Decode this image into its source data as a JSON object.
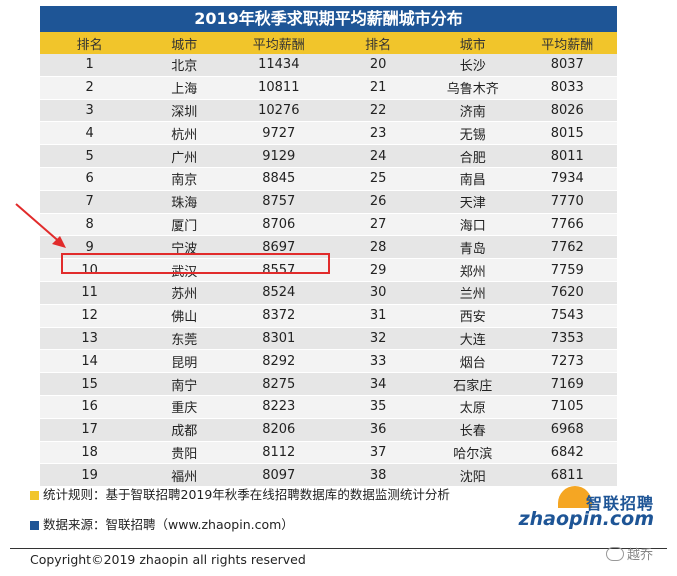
{
  "title": "2019年秋季求职期平均薪酬城市分布",
  "headers": {
    "rank": "排名",
    "city": "城市",
    "salary": "平均薪酬"
  },
  "rows": [
    {
      "l": {
        "rank": "1",
        "city": "北京",
        "salary": "11434"
      },
      "r": {
        "rank": "20",
        "city": "长沙",
        "salary": "8037"
      }
    },
    {
      "l": {
        "rank": "2",
        "city": "上海",
        "salary": "10811"
      },
      "r": {
        "rank": "21",
        "city": "乌鲁木齐",
        "salary": "8033"
      }
    },
    {
      "l": {
        "rank": "3",
        "city": "深圳",
        "salary": "10276"
      },
      "r": {
        "rank": "22",
        "city": "济南",
        "salary": "8026"
      }
    },
    {
      "l": {
        "rank": "4",
        "city": "杭州",
        "salary": "9727"
      },
      "r": {
        "rank": "23",
        "city": "无锡",
        "salary": "8015"
      }
    },
    {
      "l": {
        "rank": "5",
        "city": "广州",
        "salary": "9129"
      },
      "r": {
        "rank": "24",
        "city": "合肥",
        "salary": "8011"
      }
    },
    {
      "l": {
        "rank": "6",
        "city": "南京",
        "salary": "8845"
      },
      "r": {
        "rank": "25",
        "city": "南昌",
        "salary": "7934"
      }
    },
    {
      "l": {
        "rank": "7",
        "city": "珠海",
        "salary": "8757"
      },
      "r": {
        "rank": "26",
        "city": "天津",
        "salary": "7770"
      }
    },
    {
      "l": {
        "rank": "8",
        "city": "厦门",
        "salary": "8706"
      },
      "r": {
        "rank": "27",
        "city": "海口",
        "salary": "7766"
      }
    },
    {
      "l": {
        "rank": "9",
        "city": "宁波",
        "salary": "8697"
      },
      "r": {
        "rank": "28",
        "city": "青岛",
        "salary": "7762"
      }
    },
    {
      "l": {
        "rank": "10",
        "city": "武汉",
        "salary": "8557"
      },
      "r": {
        "rank": "29",
        "city": "郑州",
        "salary": "7759"
      }
    },
    {
      "l": {
        "rank": "11",
        "city": "苏州",
        "salary": "8524"
      },
      "r": {
        "rank": "30",
        "city": "兰州",
        "salary": "7620"
      }
    },
    {
      "l": {
        "rank": "12",
        "city": "佛山",
        "salary": "8372"
      },
      "r": {
        "rank": "31",
        "city": "西安",
        "salary": "7543"
      }
    },
    {
      "l": {
        "rank": "13",
        "city": "东莞",
        "salary": "8301"
      },
      "r": {
        "rank": "32",
        "city": "大连",
        "salary": "7353"
      }
    },
    {
      "l": {
        "rank": "14",
        "city": "昆明",
        "salary": "8292"
      },
      "r": {
        "rank": "33",
        "city": "烟台",
        "salary": "7273"
      }
    },
    {
      "l": {
        "rank": "15",
        "city": "南宁",
        "salary": "8275"
      },
      "r": {
        "rank": "34",
        "city": "石家庄",
        "salary": "7169"
      }
    },
    {
      "l": {
        "rank": "16",
        "city": "重庆",
        "salary": "8223"
      },
      "r": {
        "rank": "35",
        "city": "太原",
        "salary": "7105"
      }
    },
    {
      "l": {
        "rank": "17",
        "city": "成都",
        "salary": "8206"
      },
      "r": {
        "rank": "36",
        "city": "长春",
        "salary": "6968"
      }
    },
    {
      "l": {
        "rank": "18",
        "city": "贵阳",
        "salary": "8112"
      },
      "r": {
        "rank": "37",
        "city": "哈尔滨",
        "salary": "6842"
      }
    },
    {
      "l": {
        "rank": "19",
        "city": "福州",
        "salary": "8097"
      },
      "r": {
        "rank": "38",
        "city": "沈阳",
        "salary": "6811"
      }
    }
  ],
  "highlighted_rank": "10",
  "notes": {
    "rule": "统计规则：基于智联招聘2019年秋季在线招聘数据库的数据监测统计分析",
    "source": "数据来源：智联招聘（www.zhaopin.com）"
  },
  "colors": {
    "title_bg": "#1e5596",
    "header_bg": "#f1c52b",
    "highlight": "#e12b2b",
    "note_yellow": "#f1c52b",
    "note_blue": "#1e5596"
  },
  "logo": {
    "cn": "智联招聘",
    "en": "zhaopin.com"
  },
  "copyright": "Copyright©2019 zhaopin all rights reserved",
  "watermark": "越乔"
}
